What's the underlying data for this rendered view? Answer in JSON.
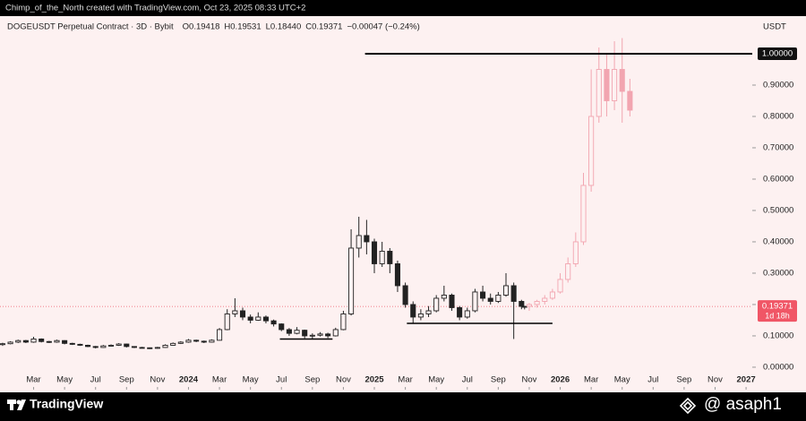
{
  "chart_data": {
    "type": "candlestick",
    "header": {
      "creator": "Chimp_of_the_North created with TradingView.com, Oct 23, 2025 08:33 UTC+2",
      "symbol": "DOGEUSDT Perpetual Contract · 3D · Bybit",
      "open": "O0.19418",
      "high": "H0.19531",
      "low": "L0.18440",
      "close": "C0.19371",
      "change": "−0.00047 (−0.24%)"
    },
    "currency": "USDT",
    "brand": "TradingView",
    "watermark": "@ asaph1",
    "xlim": [
      -0.17,
      48.4
    ],
    "ylim": [
      -0.063,
      1.12
    ],
    "xticks": [
      {
        "value": 2,
        "label": "Mar"
      },
      {
        "value": 4,
        "label": "May"
      },
      {
        "value": 6,
        "label": "Jul"
      },
      {
        "value": 8,
        "label": "Sep"
      },
      {
        "value": 10,
        "label": "Nov"
      },
      {
        "value": 12,
        "label": "2024"
      },
      {
        "value": 14,
        "label": "Mar"
      },
      {
        "value": 16,
        "label": "May"
      },
      {
        "value": 18,
        "label": "Jul"
      },
      {
        "value": 20,
        "label": "Sep"
      },
      {
        "value": 22,
        "label": "Nov"
      },
      {
        "value": 24,
        "label": "2025"
      },
      {
        "value": 26,
        "label": "Mar"
      },
      {
        "value": 28,
        "label": "May"
      },
      {
        "value": 30,
        "label": "Jul"
      },
      {
        "value": 32,
        "label": "Sep"
      },
      {
        "value": 34,
        "label": "Nov"
      },
      {
        "value": 36,
        "label": "2026"
      },
      {
        "value": 38,
        "label": "Mar"
      },
      {
        "value": 40,
        "label": "May"
      },
      {
        "value": 42,
        "label": "Jul"
      },
      {
        "value": 44,
        "label": "Sep"
      },
      {
        "value": 46,
        "label": "Nov"
      },
      {
        "value": 48,
        "label": "2027"
      }
    ],
    "yticks": [
      {
        "value": 0,
        "label": "0.00000"
      },
      {
        "value": 0.1,
        "label": "0.10000"
      },
      {
        "value": 0.2,
        "label": "0.20000"
      },
      {
        "value": 0.3,
        "label": "0.30000"
      },
      {
        "value": 0.4,
        "label": "0.40000"
      },
      {
        "value": 0.5,
        "label": "0.50000"
      },
      {
        "value": 0.6,
        "label": "0.60000"
      },
      {
        "value": 0.7,
        "label": "0.70000"
      },
      {
        "value": 0.8,
        "label": "0.80000"
      },
      {
        "value": 0.9,
        "label": "0.90000"
      }
    ],
    "levels": [
      {
        "value": 1,
        "label": "1.00000",
        "x": [
          23.4,
          48.4
        ]
      },
      {
        "value": 0.09,
        "x": [
          17.9,
          21.3
        ]
      },
      {
        "value": 0.14,
        "x": [
          26.1,
          35.5
        ]
      }
    ],
    "last_price": {
      "value": 0.19371,
      "label": "0.19371",
      "countdown": "1d 18h",
      "color": "#f05666"
    },
    "series": [
      {
        "color": "#222222",
        "x": [
          0,
          0.5,
          1,
          1.5,
          2,
          2.5,
          3,
          3.5,
          4,
          4.5,
          5,
          5.5,
          6,
          6.5,
          7,
          7.5,
          8,
          8.5,
          9,
          9.5,
          10,
          10.5,
          11,
          11.5,
          12,
          12.5,
          13,
          13.5,
          14,
          14.5,
          15,
          15.5,
          16,
          16.5,
          17,
          17.5,
          18,
          18.5,
          19,
          19.5,
          20,
          20.5,
          21,
          21.5,
          22,
          22.5,
          23,
          23.5,
          24,
          24.5,
          25,
          25.5,
          26,
          26.5,
          27,
          27.5,
          28,
          28.5,
          29,
          29.5,
          30,
          30.5,
          31,
          31.5,
          32,
          32.5,
          33,
          33.5,
          33.7
        ],
        "ohlc": [
          [
            0.072,
            0.078,
            0.068,
            0.075
          ],
          [
            0.075,
            0.083,
            0.073,
            0.08
          ],
          [
            0.08,
            0.088,
            0.077,
            0.085
          ],
          [
            0.085,
            0.087,
            0.077,
            0.08
          ],
          [
            0.08,
            0.097,
            0.078,
            0.09
          ],
          [
            0.09,
            0.092,
            0.079,
            0.082
          ],
          [
            0.082,
            0.084,
            0.077,
            0.08
          ],
          [
            0.08,
            0.088,
            0.078,
            0.085
          ],
          [
            0.085,
            0.086,
            0.073,
            0.076
          ],
          [
            0.076,
            0.078,
            0.071,
            0.073
          ],
          [
            0.073,
            0.075,
            0.068,
            0.07
          ],
          [
            0.07,
            0.072,
            0.064,
            0.066
          ],
          [
            0.066,
            0.068,
            0.06,
            0.063
          ],
          [
            0.063,
            0.071,
            0.062,
            0.068
          ],
          [
            0.068,
            0.073,
            0.066,
            0.07
          ],
          [
            0.07,
            0.077,
            0.068,
            0.074
          ],
          [
            0.074,
            0.075,
            0.063,
            0.066
          ],
          [
            0.066,
            0.067,
            0.061,
            0.063
          ],
          [
            0.063,
            0.065,
            0.06,
            0.062
          ],
          [
            0.062,
            0.063,
            0.058,
            0.061
          ],
          [
            0.061,
            0.065,
            0.059,
            0.063
          ],
          [
            0.063,
            0.073,
            0.062,
            0.07
          ],
          [
            0.07,
            0.079,
            0.069,
            0.076
          ],
          [
            0.076,
            0.083,
            0.074,
            0.08
          ],
          [
            0.08,
            0.09,
            0.078,
            0.086
          ],
          [
            0.086,
            0.088,
            0.08,
            0.083
          ],
          [
            0.083,
            0.085,
            0.077,
            0.08
          ],
          [
            0.08,
            0.089,
            0.079,
            0.086
          ],
          [
            0.086,
            0.125,
            0.085,
            0.12
          ],
          [
            0.12,
            0.185,
            0.118,
            0.17
          ],
          [
            0.17,
            0.22,
            0.16,
            0.18
          ],
          [
            0.18,
            0.19,
            0.15,
            0.16
          ],
          [
            0.16,
            0.168,
            0.14,
            0.15
          ],
          [
            0.15,
            0.175,
            0.148,
            0.16
          ],
          [
            0.16,
            0.165,
            0.14,
            0.148
          ],
          [
            0.148,
            0.152,
            0.13,
            0.138
          ],
          [
            0.138,
            0.14,
            0.115,
            0.12
          ],
          [
            0.12,
            0.125,
            0.1,
            0.108
          ],
          [
            0.108,
            0.128,
            0.105,
            0.118
          ],
          [
            0.118,
            0.12,
            0.092,
            0.1
          ],
          [
            0.1,
            0.108,
            0.09,
            0.102
          ],
          [
            0.102,
            0.112,
            0.098,
            0.106
          ],
          [
            0.106,
            0.11,
            0.093,
            0.1
          ],
          [
            0.1,
            0.126,
            0.098,
            0.12
          ],
          [
            0.12,
            0.18,
            0.118,
            0.17
          ],
          [
            0.17,
            0.44,
            0.165,
            0.38
          ],
          [
            0.38,
            0.48,
            0.35,
            0.42
          ],
          [
            0.42,
            0.47,
            0.36,
            0.4
          ],
          [
            0.4,
            0.41,
            0.3,
            0.33
          ],
          [
            0.33,
            0.4,
            0.32,
            0.37
          ],
          [
            0.37,
            0.38,
            0.3,
            0.33
          ],
          [
            0.33,
            0.34,
            0.24,
            0.26
          ],
          [
            0.26,
            0.27,
            0.19,
            0.2
          ],
          [
            0.2,
            0.21,
            0.14,
            0.16
          ],
          [
            0.16,
            0.185,
            0.15,
            0.17
          ],
          [
            0.17,
            0.195,
            0.16,
            0.18
          ],
          [
            0.18,
            0.23,
            0.175,
            0.22
          ],
          [
            0.22,
            0.26,
            0.21,
            0.23
          ],
          [
            0.23,
            0.235,
            0.18,
            0.19
          ],
          [
            0.19,
            0.195,
            0.15,
            0.16
          ],
          [
            0.16,
            0.19,
            0.155,
            0.18
          ],
          [
            0.18,
            0.25,
            0.175,
            0.24
          ],
          [
            0.24,
            0.26,
            0.21,
            0.22
          ],
          [
            0.22,
            0.235,
            0.2,
            0.21
          ],
          [
            0.21,
            0.24,
            0.205,
            0.23
          ],
          [
            0.23,
            0.3,
            0.225,
            0.26
          ],
          [
            0.26,
            0.27,
            0.09,
            0.21
          ],
          [
            0.21,
            0.215,
            0.185,
            0.194
          ],
          [
            0.19418,
            0.19531,
            0.1844,
            0.19371
          ]
        ]
      },
      {
        "color": "#f2a5b0",
        "x": [
          34,
          34.5,
          35,
          35.5,
          36,
          36.5,
          37,
          37.5,
          38,
          38.5,
          39,
          39.5,
          40,
          40.5
        ],
        "ohlc": [
          [
            0.194,
            0.205,
            0.18,
            0.2
          ],
          [
            0.2,
            0.215,
            0.19,
            0.21
          ],
          [
            0.21,
            0.23,
            0.2,
            0.22
          ],
          [
            0.22,
            0.25,
            0.215,
            0.24
          ],
          [
            0.24,
            0.3,
            0.235,
            0.28
          ],
          [
            0.28,
            0.35,
            0.27,
            0.33
          ],
          [
            0.33,
            0.43,
            0.32,
            0.4
          ],
          [
            0.4,
            0.62,
            0.39,
            0.58
          ],
          [
            0.58,
            0.95,
            0.56,
            0.8
          ],
          [
            0.8,
            1.02,
            0.78,
            0.95
          ],
          [
            0.95,
            1.0,
            0.8,
            0.85
          ],
          [
            0.85,
            1.04,
            0.82,
            0.95
          ],
          [
            0.95,
            1.05,
            0.78,
            0.88
          ],
          [
            0.88,
            0.92,
            0.8,
            0.82
          ]
        ]
      }
    ]
  }
}
